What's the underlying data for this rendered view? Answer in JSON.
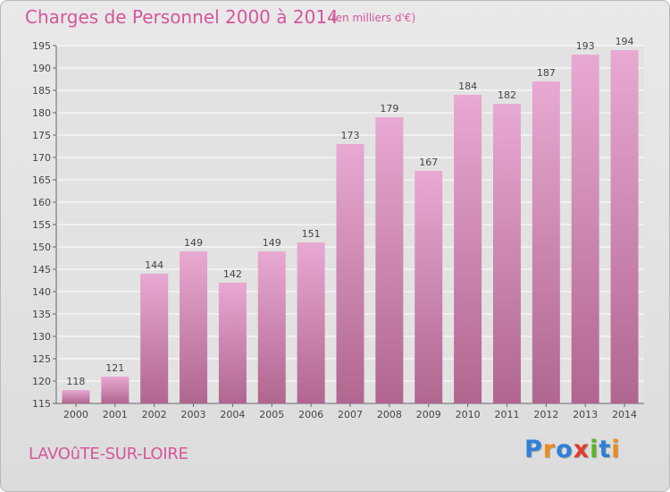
{
  "title": "Charges de Personnel 2000 à 2014",
  "subtitle": "(en milliers d'€)",
  "city": "LAVOûTE-SUR-LOIRE",
  "logo": {
    "letters": [
      "P",
      "r",
      "o",
      "x",
      "i",
      "t",
      "i"
    ],
    "colors": [
      "#2f7fd6",
      "#f08a1c",
      "#2f7fd6",
      "#e23b2e",
      "#5fb32a",
      "#2f7fd6",
      "#f08a1c"
    ]
  },
  "colors": {
    "bar_top": "#e8a9d2",
    "bar_bottom": "#b0668f",
    "accent": "#d4569b"
  },
  "chart_data": {
    "type": "bar",
    "categories": [
      "2000",
      "2001",
      "2002",
      "2003",
      "2004",
      "2005",
      "2006",
      "2007",
      "2008",
      "2009",
      "2010",
      "2011",
      "2012",
      "2013",
      "2014"
    ],
    "values": [
      118,
      121,
      144,
      149,
      142,
      149,
      151,
      173,
      179,
      167,
      184,
      182,
      187,
      193,
      194
    ],
    "ylim": [
      115,
      195
    ],
    "yticks": [
      115,
      120,
      125,
      130,
      135,
      140,
      145,
      150,
      155,
      160,
      165,
      170,
      175,
      180,
      185,
      190,
      195
    ],
    "grid": true
  }
}
